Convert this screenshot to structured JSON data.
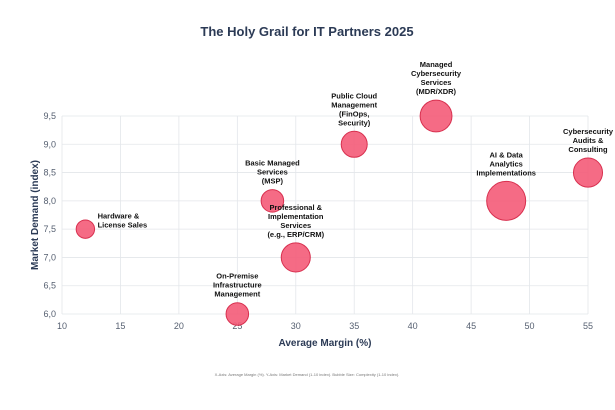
{
  "chart_data": {
    "type": "scatter",
    "title": "The Holy Grail for IT Partners 2025",
    "xlabel": "Average Margin (%)",
    "ylabel": "Market Demand (index)",
    "xlim": [
      10,
      55
    ],
    "ylim": [
      6.0,
      9.5
    ],
    "x_ticks": [
      "10",
      "15",
      "20",
      "25",
      "30",
      "35",
      "40",
      "45",
      "50",
      "55"
    ],
    "y_ticks": [
      "6,0",
      "6,5",
      "7,0",
      "7,5",
      "8,0",
      "8,5",
      "9,0",
      "9,5"
    ],
    "grid": true,
    "bubble_color": "#f45b78",
    "bubble_stroke": "#d8304f",
    "footnote": "X-Axis: Average Margin (%). Y-Axis: Market Demand (1-10 index). Bubble Size: Complexity (1-10 index).",
    "points": [
      {
        "label": [
          "Hardware &",
          "License Sales"
        ],
        "x": 12,
        "y": 7.5,
        "size": 2,
        "label_pos": "right"
      },
      {
        "label": [
          "On-Premise",
          "Infrastructure",
          "Management"
        ],
        "x": 25,
        "y": 6.0,
        "size": 3,
        "label_pos": "above"
      },
      {
        "label": [
          "Basic Managed",
          "Services",
          "(MSP)"
        ],
        "x": 28,
        "y": 8.0,
        "size": 3,
        "label_pos": "above"
      },
      {
        "label": [
          "Professional &",
          "Implementation",
          "Services",
          "(e.g., ERP/CRM)"
        ],
        "x": 30,
        "y": 7.0,
        "size": 5,
        "label_pos": "above"
      },
      {
        "label": [
          "Public Cloud",
          "Management",
          "(FinOps,",
          "Security)"
        ],
        "x": 35,
        "y": 9.0,
        "size": 4,
        "label_pos": "above"
      },
      {
        "label": [
          "Managed",
          "Cybersecurity",
          "Services",
          "(MDR/XDR)"
        ],
        "x": 42,
        "y": 9.5,
        "size": 6,
        "label_pos": "above"
      },
      {
        "label": [
          "AI & Data",
          "Analytics",
          "Implementations"
        ],
        "x": 48,
        "y": 8.0,
        "size": 9,
        "label_pos": "above"
      },
      {
        "label": [
          "Cybersecurity",
          "Audits &",
          "Consulting"
        ],
        "x": 55,
        "y": 8.5,
        "size": 5,
        "label_pos": "above"
      }
    ]
  }
}
